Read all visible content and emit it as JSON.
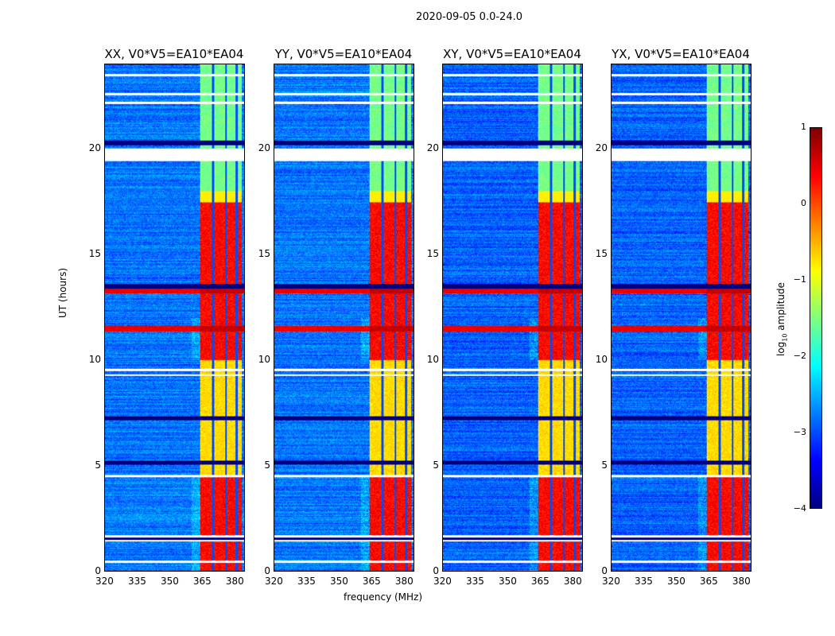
{
  "suptitle": "2020-09-05 0.0-24.0",
  "chart_data": [
    {
      "type": "heatmap",
      "title": "XX, V0*V5=EA10*EA04",
      "xlabel": "",
      "ylabel": "UT (hours)"
    },
    {
      "type": "heatmap",
      "title": "YY, V0*V5=EA10*EA04",
      "xlabel": "frequency (MHz)",
      "ylabel": ""
    },
    {
      "type": "heatmap",
      "title": "XY, V0*V5=EA10*EA04",
      "xlabel": "",
      "ylabel": ""
    },
    {
      "type": "heatmap",
      "title": "YX, V0*V5=EA10*EA04",
      "xlabel": "",
      "ylabel": ""
    }
  ],
  "axes": {
    "xlim": [
      320,
      384.8
    ],
    "ylim": [
      0,
      24
    ],
    "xticks": [
      "320",
      "335",
      "350",
      "365",
      "380"
    ],
    "xtick_values": [
      320,
      335,
      350,
      365,
      380
    ],
    "yticks": [
      "0",
      "5",
      "10",
      "15",
      "20"
    ],
    "ytick_values": [
      0,
      5,
      10,
      15,
      20
    ],
    "rfi_band_mhz": [
      364,
      383.5
    ],
    "flagged_hours": [
      0.45,
      1.45,
      1.65,
      4.5,
      9.3,
      9.55,
      19.55,
      19.75,
      19.95,
      22.2,
      22.6,
      23.5
    ],
    "dead_hours": [
      1.55,
      5.15,
      7.25,
      13.5,
      20.3
    ],
    "strong_rfi_hours": [
      11.5,
      13.3
    ]
  },
  "colorbar": {
    "label": "log10 amplitude",
    "label_main": "log",
    "label_sub": "10",
    "label_rest": " amplitude",
    "ticks": [
      "1",
      "0",
      "−1",
      "−2",
      "−3",
      "−4"
    ],
    "tick_values": [
      1,
      0,
      -1,
      -2,
      -3,
      -4
    ],
    "range": [
      -4,
      1
    ],
    "colormap": "jet"
  }
}
